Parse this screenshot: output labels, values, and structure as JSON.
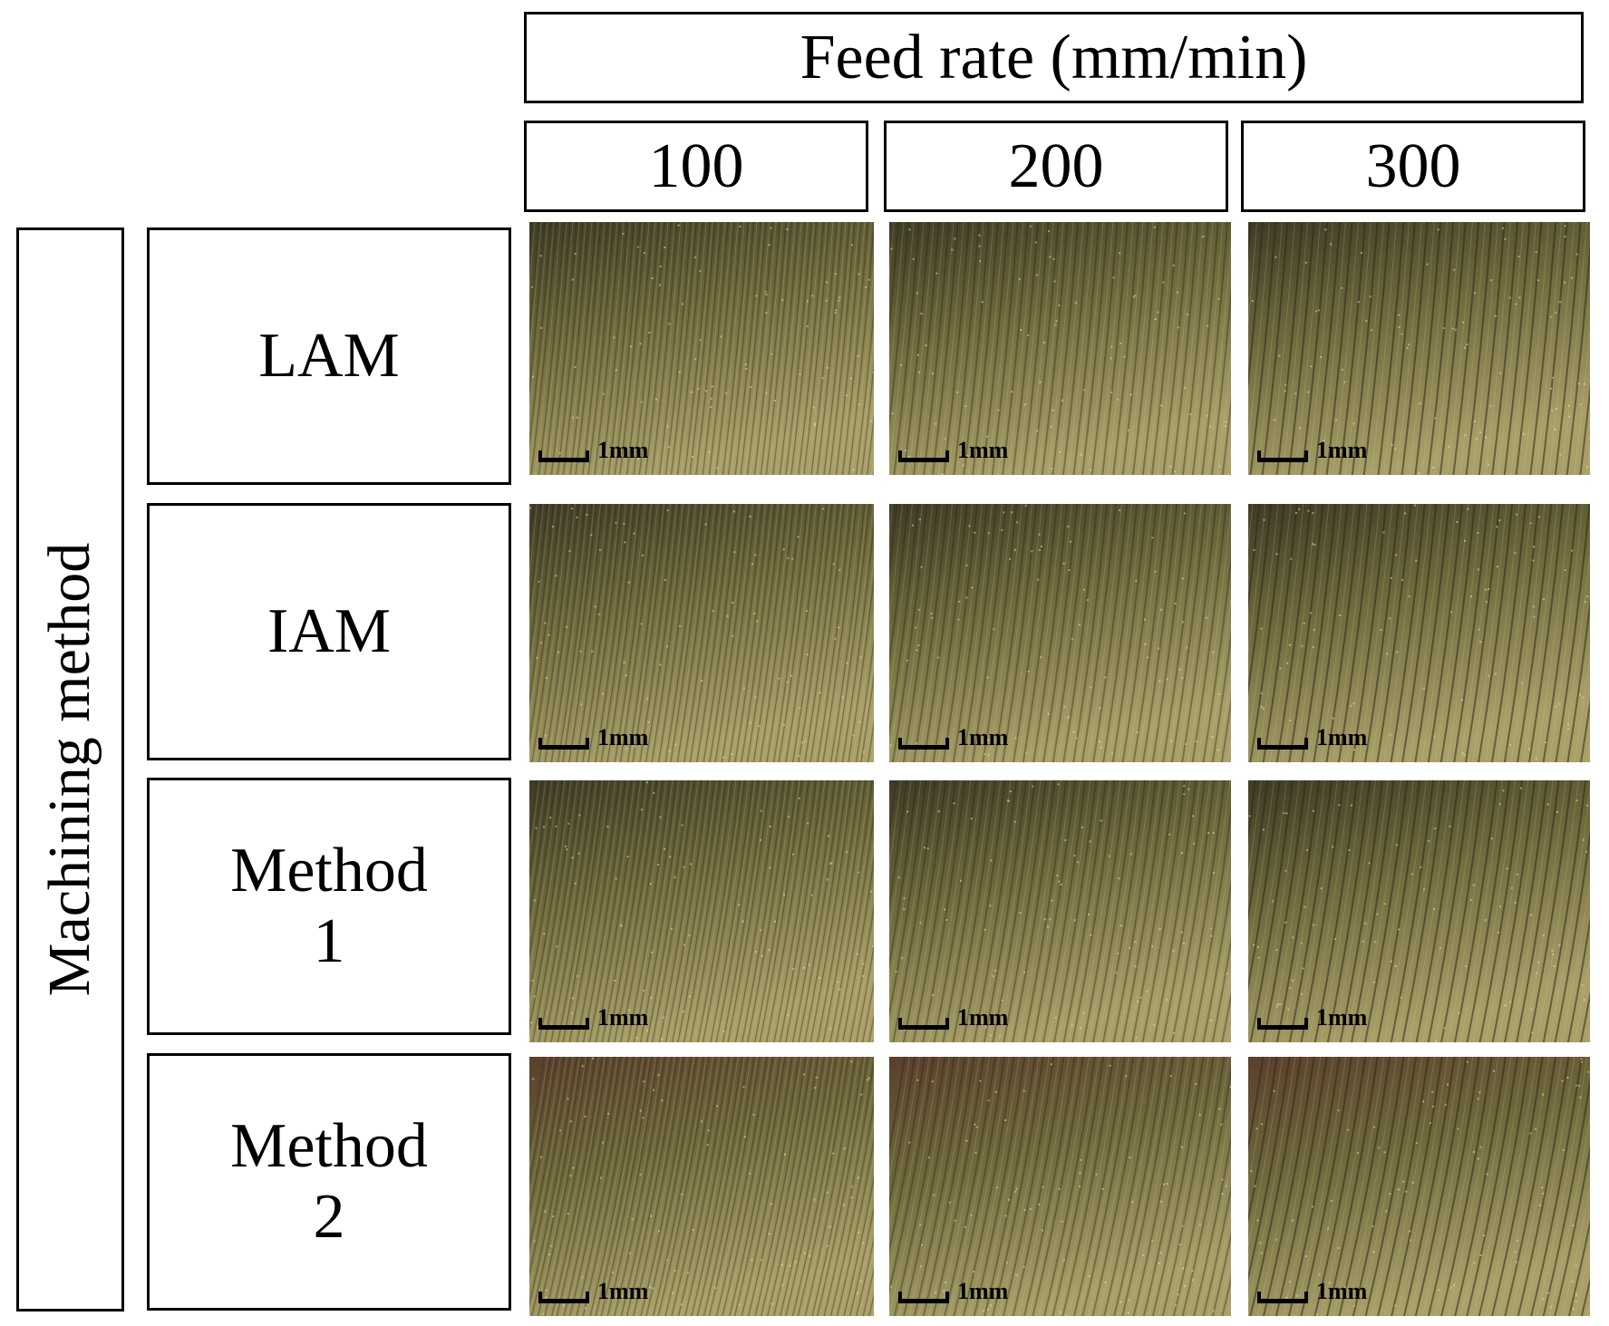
{
  "header": {
    "title": "Feed rate (mm/min)"
  },
  "columns": [
    "100",
    "200",
    "300"
  ],
  "side_label": "Machining method",
  "rows": [
    {
      "lines": [
        "LAM"
      ]
    },
    {
      "lines": [
        "IAM"
      ]
    },
    {
      "lines": [
        "Method",
        "1"
      ]
    },
    {
      "lines": [
        "Method",
        "2"
      ]
    }
  ],
  "scale_label": "1mm",
  "colors": {
    "surface_base": "#6f6a3c",
    "surface_light": "#a9a069",
    "surface_dark": "#3e3b26",
    "border": "#000000"
  }
}
